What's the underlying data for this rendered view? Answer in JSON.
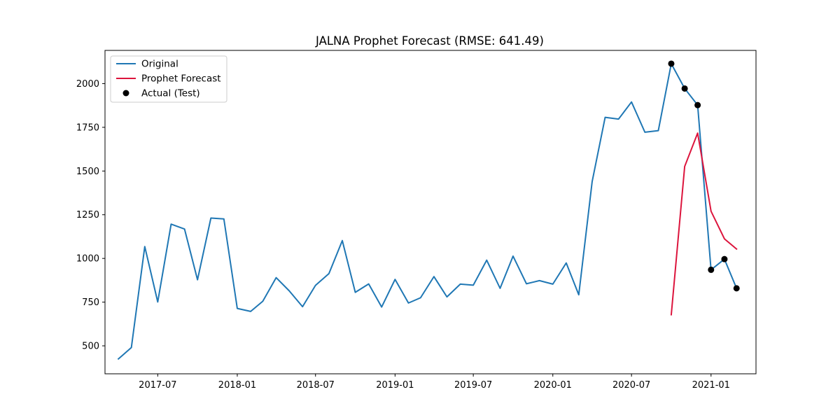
{
  "chart_data": {
    "type": "line",
    "title": "JALNA Prophet Forecast (RMSE: 641.49)",
    "xlabel": "",
    "ylabel": "",
    "xlim": [
      "2017-03-01",
      "2021-04-15"
    ],
    "ylim": [
      340,
      2190
    ],
    "yticks": [
      500,
      750,
      1000,
      1250,
      1500,
      1750,
      2000
    ],
    "xticks": [
      {
        "date": "2017-07-01",
        "label": "2017-07"
      },
      {
        "date": "2018-01-01",
        "label": "2018-01"
      },
      {
        "date": "2018-07-01",
        "label": "2018-07"
      },
      {
        "date": "2019-01-01",
        "label": "2019-01"
      },
      {
        "date": "2019-07-01",
        "label": "2019-07"
      },
      {
        "date": "2020-01-01",
        "label": "2020-01"
      },
      {
        "date": "2020-07-01",
        "label": "2020-07"
      },
      {
        "date": "2021-01-01",
        "label": "2021-01"
      }
    ],
    "grid": false,
    "legend": "top-left",
    "series": [
      {
        "name": "Original",
        "kind": "line",
        "color": "#1f77b4",
        "x": [
          "2017-04-01",
          "2017-05-01",
          "2017-06-01",
          "2017-07-01",
          "2017-08-01",
          "2017-09-01",
          "2017-10-01",
          "2017-11-01",
          "2017-12-01",
          "2018-01-01",
          "2018-02-01",
          "2018-03-01",
          "2018-04-01",
          "2018-05-01",
          "2018-06-01",
          "2018-07-01",
          "2018-08-01",
          "2018-09-01",
          "2018-10-01",
          "2018-11-01",
          "2018-12-01",
          "2019-01-01",
          "2019-02-01",
          "2019-03-01",
          "2019-04-01",
          "2019-05-01",
          "2019-06-01",
          "2019-07-01",
          "2019-08-01",
          "2019-09-01",
          "2019-10-01",
          "2019-11-01",
          "2019-12-01",
          "2020-01-01",
          "2020-02-01",
          "2020-03-01",
          "2020-04-01",
          "2020-05-01",
          "2020-06-01",
          "2020-07-01",
          "2020-08-01",
          "2020-09-01",
          "2020-10-01",
          "2020-11-01",
          "2020-12-01",
          "2021-01-01",
          "2021-02-01",
          "2021-03-01"
        ],
        "y": [
          425,
          490,
          1068,
          751,
          1196,
          1168,
          878,
          1231,
          1226,
          714,
          697,
          755,
          890,
          815,
          724,
          846,
          913,
          1102,
          806,
          854,
          722,
          880,
          745,
          775,
          896,
          780,
          853,
          847,
          990,
          829,
          1013,
          855,
          873,
          853,
          974,
          792,
          1440,
          1807,
          1797,
          1895,
          1722,
          1731,
          2114,
          1972,
          1877,
          935,
          996,
          829
        ]
      },
      {
        "name": "Prophet Forecast",
        "kind": "line",
        "color": "#dc143c",
        "x": [
          "2020-10-01",
          "2020-11-01",
          "2020-12-01",
          "2021-01-01",
          "2021-02-01",
          "2021-03-01"
        ],
        "y": [
          678,
          1526,
          1717,
          1270,
          1112,
          1054
        ]
      },
      {
        "name": "Actual (Test)",
        "kind": "scatter",
        "color": "#000000",
        "x": [
          "2020-10-01",
          "2020-11-01",
          "2020-12-01",
          "2021-01-01",
          "2021-02-01",
          "2021-03-01"
        ],
        "y": [
          2114,
          1972,
          1877,
          935,
          996,
          829
        ]
      }
    ]
  }
}
